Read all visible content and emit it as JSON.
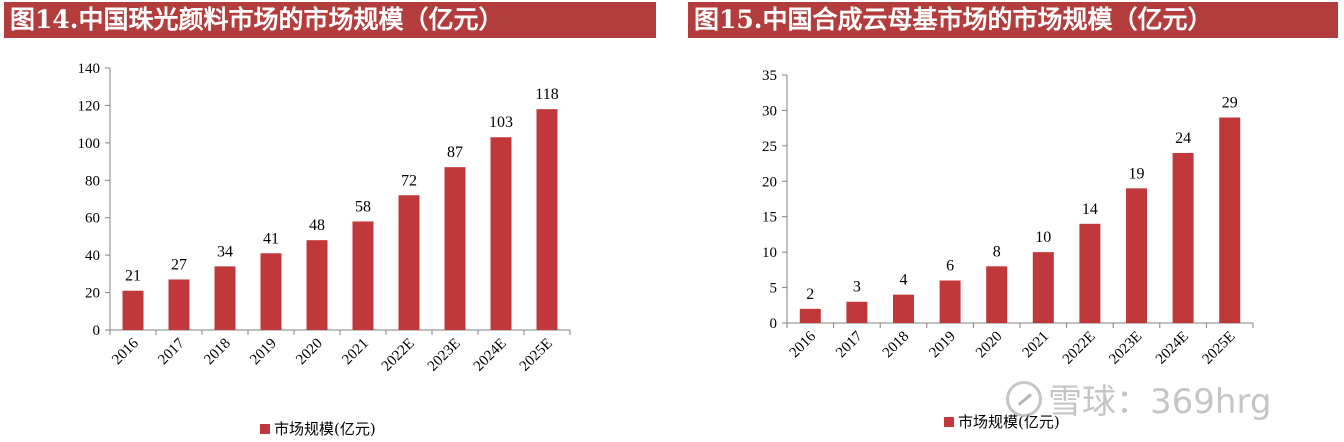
{
  "colors": {
    "bar": "#c0383a",
    "title_bg": "#b33c3c",
    "axis": "#808080"
  },
  "watermark": {
    "text": "雪球：369hrg",
    "icon": "snowball-logo-icon"
  },
  "chart_data": [
    {
      "type": "bar",
      "title": "图14.中国珠光颜料市场的市场规模（亿元）",
      "categories": [
        "2016",
        "2017",
        "2018",
        "2019",
        "2020",
        "2021",
        "2022E",
        "2023E",
        "2024E",
        "2025E"
      ],
      "series": [
        {
          "name": "市场规模(亿元)",
          "values": [
            21,
            27,
            34,
            41,
            48,
            58,
            72,
            87,
            103,
            118
          ]
        }
      ],
      "yticks": [
        "0",
        "20",
        "40",
        "60",
        "80",
        "100",
        "120",
        "140"
      ],
      "ylim": [
        0,
        140
      ],
      "grid": false,
      "legend_position": "bottom"
    },
    {
      "type": "bar",
      "title": "图15.中国合成云母基市场的市场规模（亿元）",
      "categories": [
        "2016",
        "2017",
        "2018",
        "2019",
        "2020",
        "2021",
        "2022E",
        "2023E",
        "2024E",
        "2025E"
      ],
      "series": [
        {
          "name": "市场规模(亿元)",
          "values": [
            2,
            3,
            4,
            6,
            8,
            10,
            14,
            19,
            24,
            29
          ]
        }
      ],
      "yticks": [
        "0",
        "5",
        "10",
        "15",
        "20",
        "25",
        "30",
        "35"
      ],
      "ylim": [
        0,
        35
      ],
      "grid": false,
      "legend_position": "bottom"
    }
  ]
}
